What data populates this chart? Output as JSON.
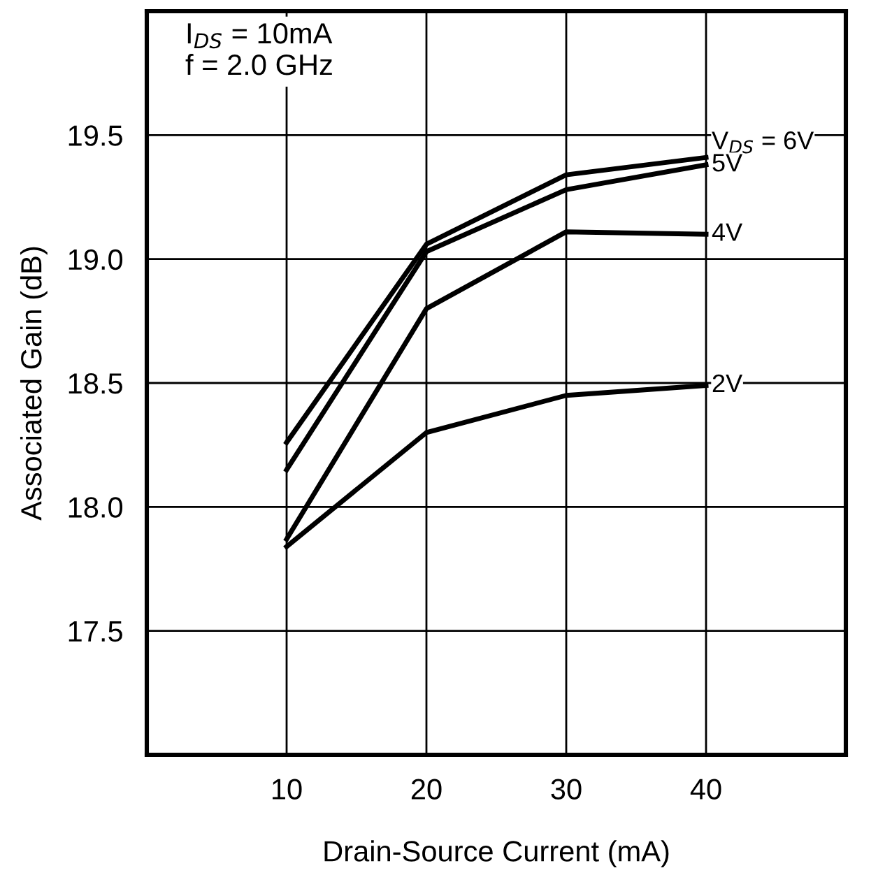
{
  "chart_data": {
    "type": "line",
    "xlabel": "Drain-Source Current (mA)",
    "ylabel": "Associated Gain (dB)",
    "annotations": [
      "I$_{DS}$ = 10mA\nf = 2.0 GHz"
    ],
    "x": [
      10,
      20,
      30,
      40
    ],
    "series": [
      {
        "name": "V$_{DS}$ = 6V",
        "color": "#000000",
        "values": [
          18.26,
          19.06,
          19.34,
          19.41
        ]
      },
      {
        "name": "5V",
        "color": "#000000",
        "values": [
          18.15,
          19.03,
          19.28,
          19.38
        ]
      },
      {
        "name": "4V",
        "color": "#000000",
        "values": [
          17.87,
          18.8,
          19.11,
          19.1
        ]
      },
      {
        "name": "2V",
        "color": "#000000",
        "values": [
          17.84,
          18.3,
          18.45,
          18.49
        ]
      }
    ],
    "xlim": [
      0,
      50
    ],
    "ylim": [
      17,
      20
    ],
    "xticks": [
      10,
      20,
      30,
      40
    ],
    "yticks": [
      17.5,
      {
        "value": 18,
        "label": "18.0"
      },
      18.5,
      {
        "value": 19,
        "label": "19.0"
      },
      19.5
    ],
    "grid": true,
    "legend": false,
    "marker": "none",
    "line_style": "solid"
  }
}
